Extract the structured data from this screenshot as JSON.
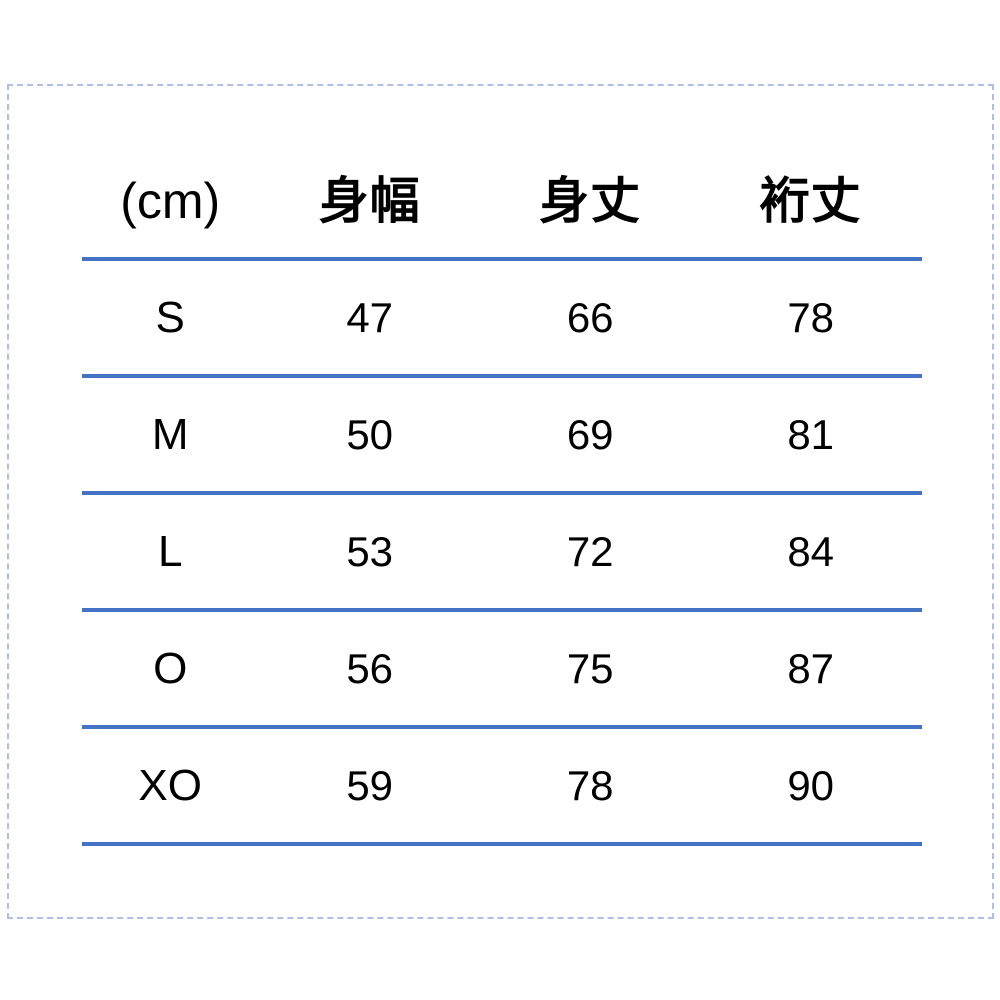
{
  "colors": {
    "background": "#FFFFFF",
    "table_rule_line": "#4472C4",
    "outer_dashed_border": "#AEC0E5",
    "text": "#000000"
  },
  "chart_data": {
    "type": "table",
    "title": "",
    "unit_label": "(cm)",
    "columns": [
      "身幅",
      "身丈",
      "裄丈"
    ],
    "rows": [
      {
        "size": "S",
        "values": [
          47,
          66,
          78
        ]
      },
      {
        "size": "M",
        "values": [
          50,
          69,
          81
        ]
      },
      {
        "size": "L",
        "values": [
          53,
          72,
          84
        ]
      },
      {
        "size": "O",
        "values": [
          56,
          75,
          87
        ]
      },
      {
        "size": "XO",
        "values": [
          59,
          78,
          90
        ]
      }
    ],
    "layout": {
      "grid": "horizontal rules only",
      "rule_color": "#4472C4",
      "frame": "light blue dashed border around image"
    }
  }
}
